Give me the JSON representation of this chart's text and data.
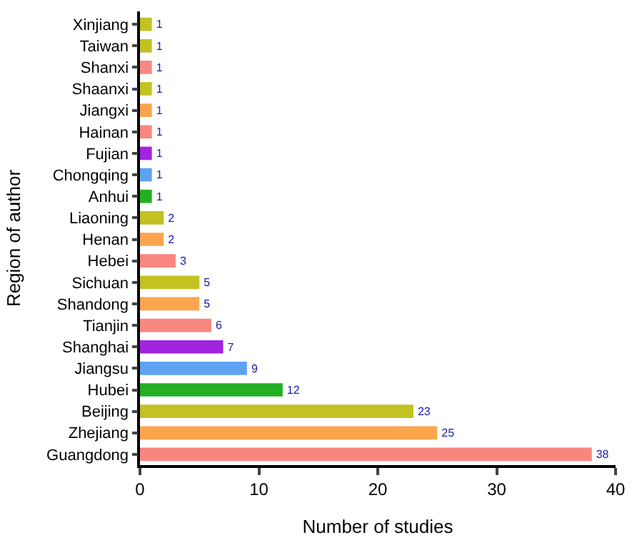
{
  "chart_data": {
    "type": "bar",
    "orientation": "horizontal",
    "xlabel": "Number of studies",
    "ylabel": "Region of author",
    "categories": [
      "Xinjiang",
      "Taiwan",
      "Shanxi",
      "Shaanxi",
      "Jiangxi",
      "Hainan",
      "Fujian",
      "Chongqing",
      "Anhui",
      "Liaoning",
      "Henan",
      "Hebei",
      "Sichuan",
      "Shandong",
      "Tianjin",
      "Shanghai",
      "Jiangsu",
      "Hubei",
      "Beijing",
      "Zhejiang",
      "Guangdong"
    ],
    "values": [
      1,
      1,
      1,
      1,
      1,
      1,
      1,
      1,
      1,
      2,
      2,
      3,
      5,
      5,
      6,
      7,
      9,
      12,
      23,
      25,
      38
    ],
    "colors": [
      "#c2c223",
      "#c2c223",
      "#f8877f",
      "#c2c223",
      "#fba54e",
      "#f8877f",
      "#a224e0",
      "#5ea3f2",
      "#22b022",
      "#c2c223",
      "#fba54e",
      "#f8877f",
      "#c2c223",
      "#fba54e",
      "#f8877f",
      "#a224e0",
      "#5ea3f2",
      "#22b022",
      "#c2c223",
      "#fba54e",
      "#f8877f"
    ],
    "xlim": [
      0,
      40
    ],
    "xticks": [
      0,
      10,
      20,
      30,
      40
    ],
    "data_labels": true
  }
}
